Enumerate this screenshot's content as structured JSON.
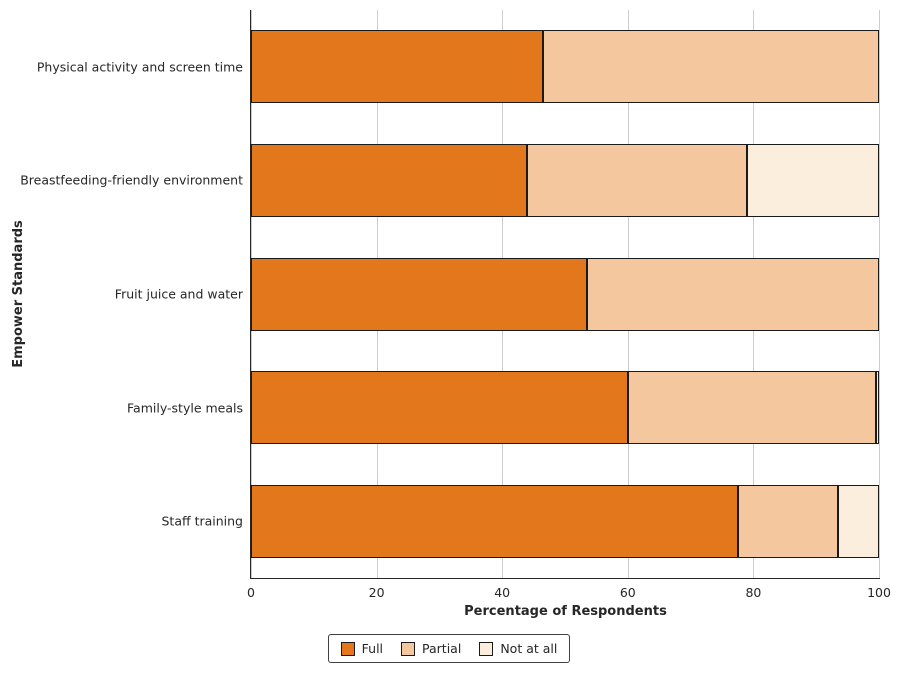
{
  "chart_data": {
    "type": "bar",
    "orientation": "horizontal",
    "stacked": true,
    "title": "",
    "xlabel": "Percentage of Respondents",
    "ylabel": "Empower Standards",
    "xlim": [
      0,
      100
    ],
    "xticks": [
      0,
      20,
      40,
      60,
      80,
      100
    ],
    "grid": "vertical",
    "grid_color": "#cccccc",
    "bar_edge_color": "#1a1a1a",
    "legend_position": "bottom-center",
    "categories": [
      "Physical activity and screen time",
      "Breastfeeding-friendly environment",
      "Fruit juice and water",
      "Family-style meals",
      "Staff training"
    ],
    "series": [
      {
        "name": "Full",
        "color": "#E2771C",
        "values": [
          46.5,
          44,
          53.5,
          60,
          77.5
        ]
      },
      {
        "name": "Partial",
        "color": "#F5C79E",
        "values": [
          53.5,
          35,
          46.5,
          39.5,
          16
        ]
      },
      {
        "name": "Not at all",
        "color": "#FCEEDC",
        "values": [
          0,
          21,
          0,
          0.5,
          6.5
        ]
      }
    ]
  }
}
